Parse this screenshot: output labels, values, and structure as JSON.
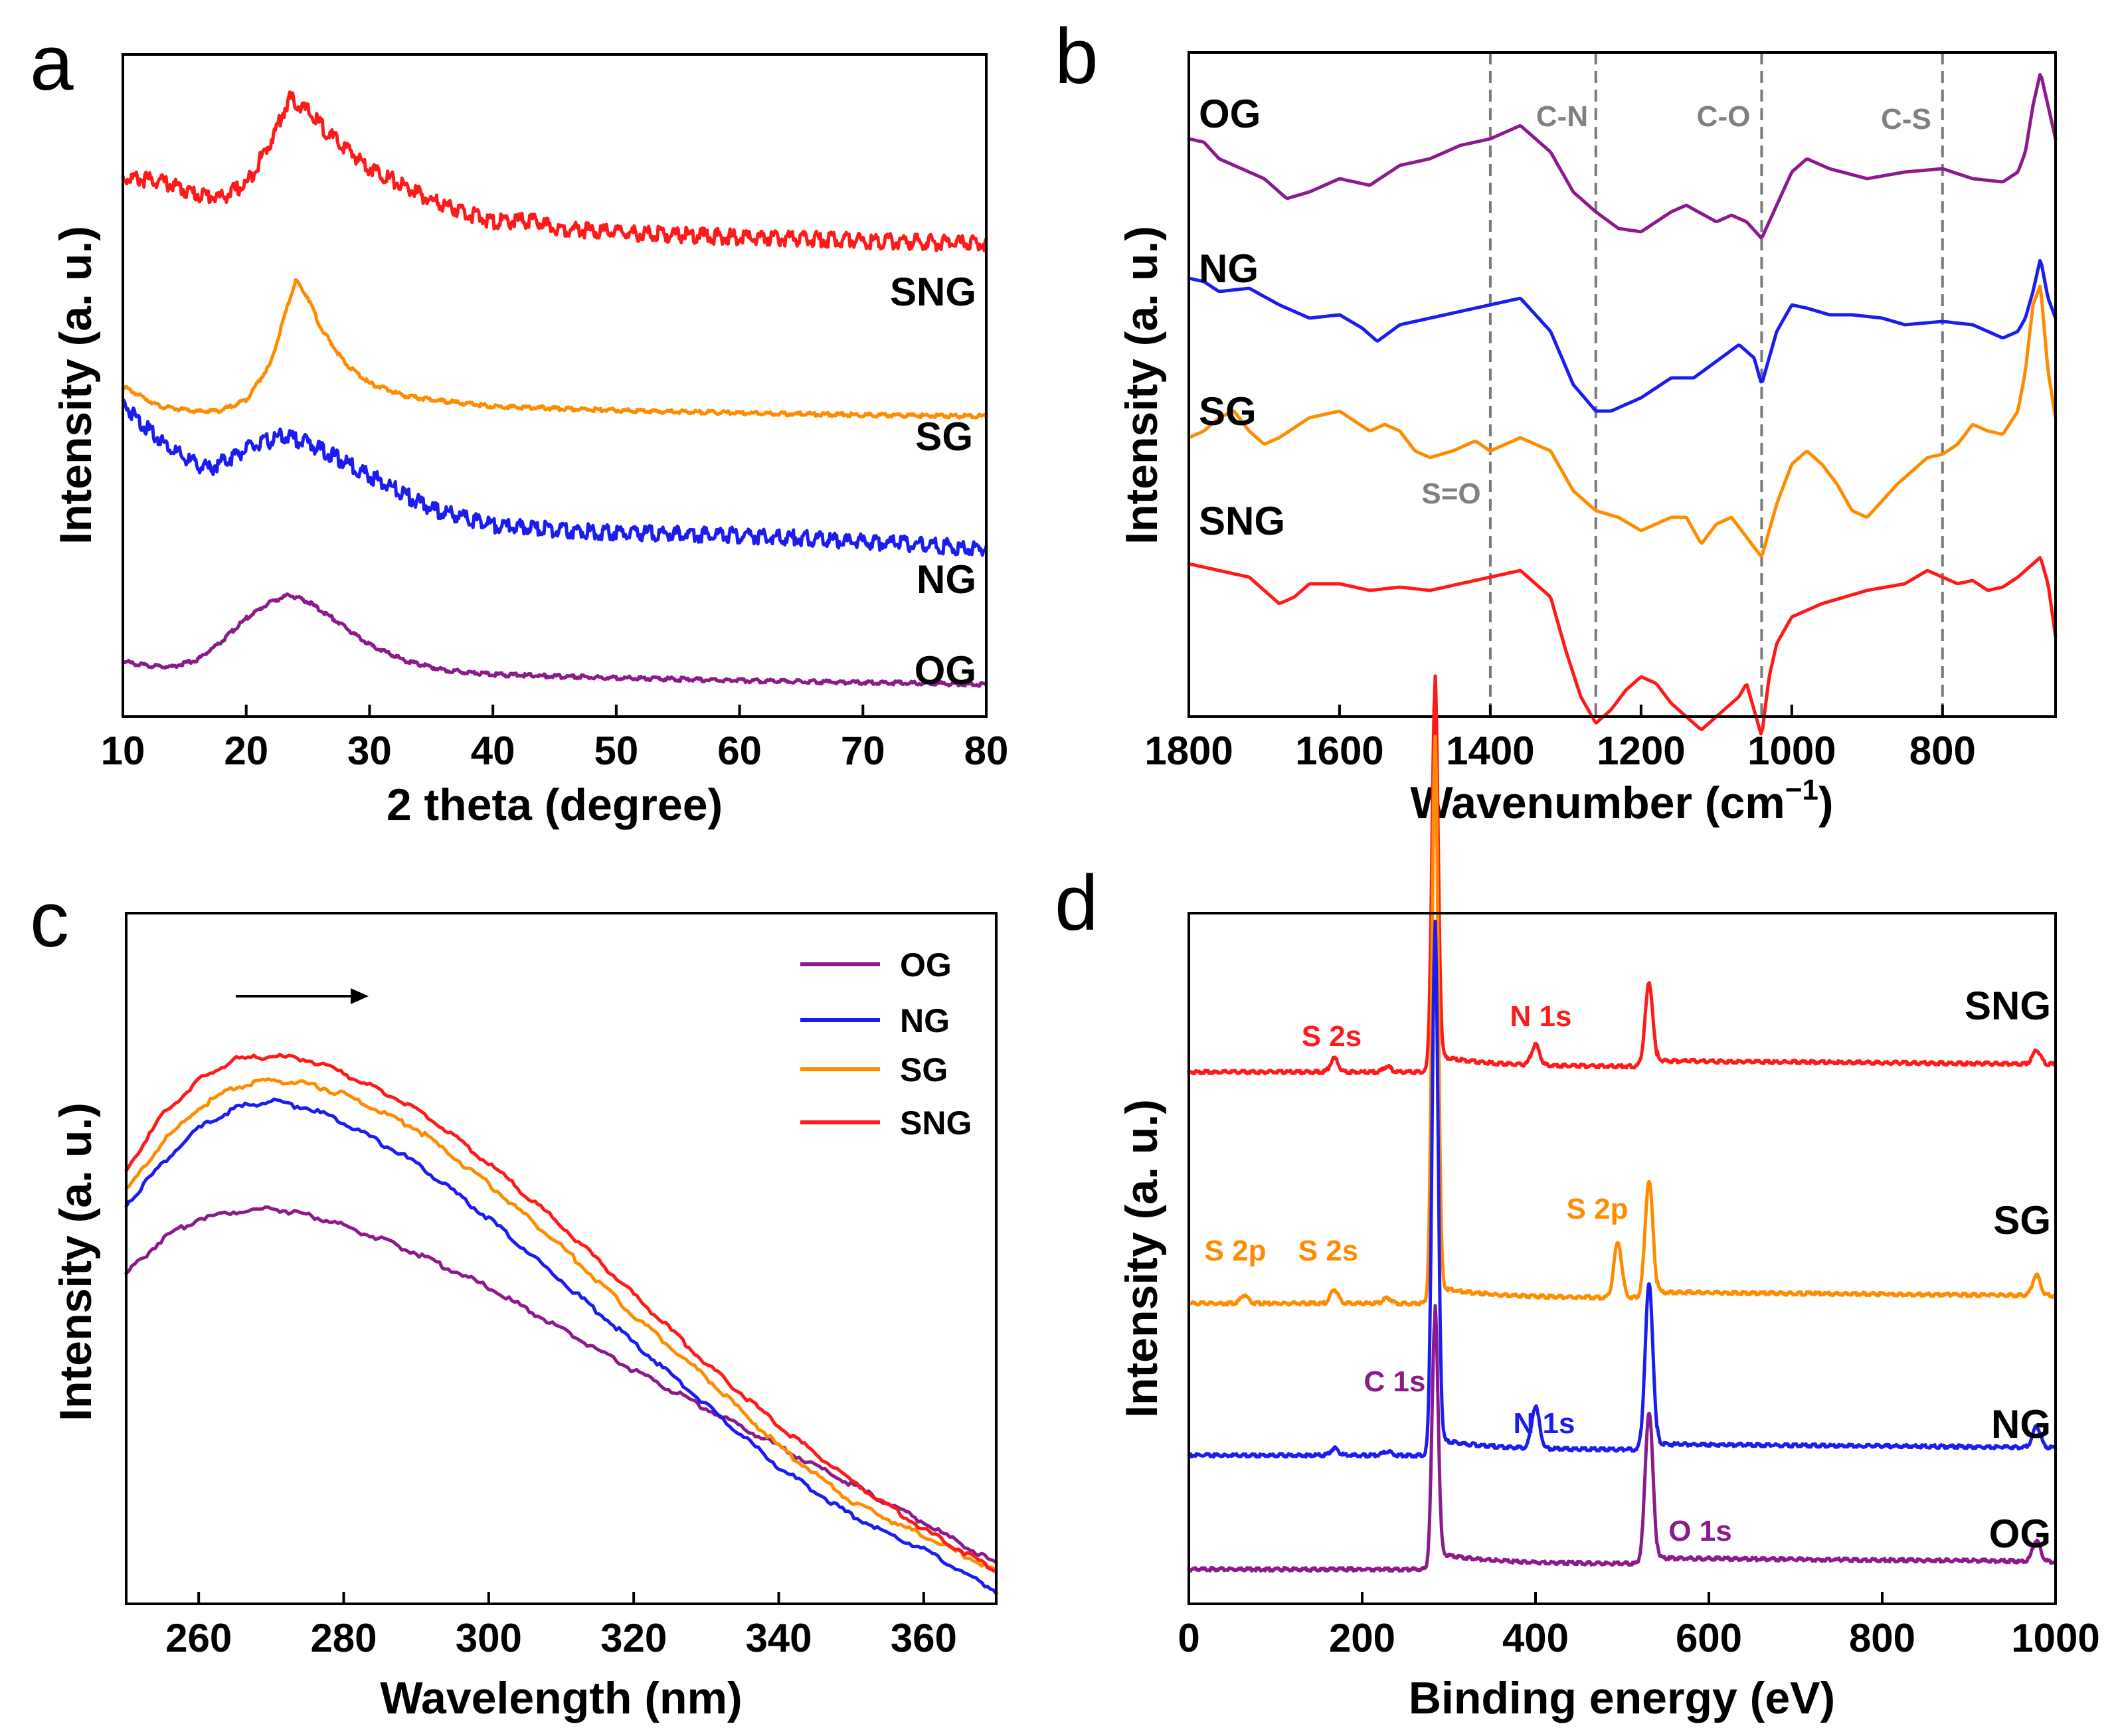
{
  "colors": {
    "OG": "#8b1a8b",
    "NG": "#1c1cf0",
    "SG": "#ff8c00",
    "SNG": "#ff1a1a",
    "annot_gray": "#808080"
  },
  "chart_data": [
    {
      "panel": "a",
      "type": "line",
      "xlabel": "2 theta (degree)",
      "ylabel": "Intensity (a. u.)",
      "xlim": [
        10,
        80
      ],
      "xticks": [
        10,
        20,
        30,
        40,
        50,
        60,
        70,
        80
      ],
      "series": [
        {
          "name": "SNG",
          "offset": 0.72,
          "x": [
            10,
            13,
            16,
            18,
            20,
            22,
            23.5,
            25,
            27,
            30,
            35,
            40,
            43,
            45,
            50,
            60,
            70,
            80
          ],
          "y": [
            0.1,
            0.095,
            0.075,
            0.07,
            0.09,
            0.155,
            0.22,
            0.2,
            0.16,
            0.115,
            0.065,
            0.033,
            0.035,
            0.024,
            0.017,
            0.01,
            0.005,
            0.0
          ]
        },
        {
          "name": "SG",
          "offset": 0.46,
          "x": [
            10,
            13,
            16,
            18,
            20,
            22,
            23,
            24,
            25,
            26,
            28,
            30,
            33,
            36,
            40,
            50,
            60,
            70,
            80
          ],
          "y": [
            0.04,
            0.01,
            0.002,
            0.004,
            0.02,
            0.075,
            0.14,
            0.2,
            0.175,
            0.13,
            0.075,
            0.045,
            0.025,
            0.018,
            0.01,
            0.004,
            0.0,
            -0.003,
            -0.005
          ]
        },
        {
          "name": "NG",
          "offset": 0.26,
          "x": [
            10,
            12,
            15,
            17,
            20,
            23,
            25,
            27,
            30,
            35,
            40,
            45,
            50,
            55,
            60,
            65,
            70,
            75,
            80
          ],
          "y": [
            0.22,
            0.18,
            0.135,
            0.12,
            0.15,
            0.17,
            0.16,
            0.14,
            0.11,
            0.06,
            0.035,
            0.028,
            0.024,
            0.022,
            0.02,
            0.016,
            0.01,
            0.005,
            0.0
          ]
        },
        {
          "name": "OG",
          "offset": 0.05,
          "x": [
            10,
            12,
            14,
            16,
            18,
            20,
            22,
            23.5,
            25,
            27,
            30,
            33,
            36,
            40,
            50,
            60,
            70,
            80
          ],
          "y": [
            0.035,
            0.028,
            0.027,
            0.037,
            0.065,
            0.1,
            0.125,
            0.135,
            0.125,
            0.1,
            0.06,
            0.035,
            0.022,
            0.015,
            0.01,
            0.006,
            0.003,
            0.0
          ]
        }
      ],
      "series_labels": [
        "SNG",
        "SG",
        "NG",
        "OG"
      ]
    },
    {
      "panel": "b",
      "type": "line",
      "xlabel": "Wavenumber (cm",
      "xlabel_sup": "−1",
      "xlabel_end": ")",
      "ylabel": "Intensity (a. u.)",
      "xlim": [
        1800,
        650
      ],
      "xticks": [
        1800,
        1600,
        1400,
        1200,
        1000,
        800
      ],
      "vlines": [
        1400,
        1260,
        1040,
        800
      ],
      "annotations": [
        "C-N",
        "C-O",
        "C-S",
        "S=O"
      ],
      "series": [
        {
          "name": "OG",
          "offset": 0.82,
          "x": [
            1800,
            1780,
            1760,
            1700,
            1670,
            1640,
            1600,
            1560,
            1520,
            1480,
            1440,
            1400,
            1360,
            1320,
            1290,
            1260,
            1230,
            1200,
            1160,
            1140,
            1100,
            1080,
            1060,
            1040,
            1020,
            1000,
            980,
            950,
            900,
            850,
            800,
            760,
            720,
            700,
            690,
            680,
            670,
            660,
            650
          ],
          "y": [
            0.05,
            0.045,
            0.02,
            -0.01,
            -0.04,
            -0.03,
            -0.01,
            -0.02,
            0.01,
            0.02,
            0.04,
            0.05,
            0.07,
            0.03,
            -0.03,
            -0.06,
            -0.085,
            -0.09,
            -0.06,
            -0.05,
            -0.075,
            -0.065,
            -0.075,
            -0.1,
            -0.05,
            0.0,
            0.02,
            0.005,
            -0.01,
            0.0,
            0.005,
            -0.01,
            -0.015,
            0.0,
            0.03,
            0.1,
            0.15,
            0.1,
            0.05
          ]
        },
        {
          "name": "NG",
          "offset": 0.6,
          "x": [
            1800,
            1780,
            1760,
            1720,
            1680,
            1640,
            1600,
            1570,
            1550,
            1520,
            1480,
            1440,
            1400,
            1360,
            1320,
            1290,
            1260,
            1240,
            1200,
            1160,
            1130,
            1100,
            1070,
            1050,
            1040,
            1020,
            1000,
            980,
            950,
            920,
            880,
            850,
            800,
            760,
            720,
            700,
            690,
            680,
            670,
            660,
            650
          ],
          "y": [
            0.06,
            0.055,
            0.04,
            0.045,
            0.02,
            0.0,
            0.005,
            -0.015,
            -0.035,
            -0.01,
            0.0,
            0.01,
            0.02,
            0.03,
            -0.02,
            -0.1,
            -0.14,
            -0.14,
            -0.12,
            -0.09,
            -0.09,
            -0.065,
            -0.04,
            -0.06,
            -0.1,
            -0.02,
            0.02,
            0.015,
            0.005,
            0.005,
            0.0,
            -0.01,
            -0.005,
            -0.01,
            -0.03,
            -0.02,
            0.0,
            0.04,
            0.09,
            0.03,
            0.0
          ]
        },
        {
          "name": "SG",
          "offset": 0.4,
          "x": [
            1800,
            1780,
            1760,
            1740,
            1720,
            1700,
            1680,
            1640,
            1600,
            1580,
            1560,
            1540,
            1520,
            1500,
            1480,
            1450,
            1420,
            1400,
            1360,
            1320,
            1290,
            1260,
            1230,
            1200,
            1160,
            1140,
            1120,
            1100,
            1080,
            1060,
            1040,
            1020,
            1000,
            980,
            960,
            940,
            920,
            900,
            860,
            820,
            800,
            780,
            760,
            740,
            720,
            700,
            690,
            680,
            670,
            660,
            650
          ],
          "y": [
            0.02,
            0.03,
            0.05,
            0.06,
            0.03,
            0.01,
            0.02,
            0.05,
            0.06,
            0.045,
            0.03,
            0.04,
            0.03,
            0.0,
            -0.01,
            0.0,
            0.015,
            0.0,
            0.02,
            0.0,
            -0.06,
            -0.09,
            -0.1,
            -0.12,
            -0.1,
            -0.1,
            -0.14,
            -0.11,
            -0.1,
            -0.13,
            -0.16,
            -0.08,
            -0.02,
            0.0,
            -0.02,
            -0.05,
            -0.09,
            -0.1,
            -0.05,
            -0.01,
            -0.005,
            0.01,
            0.04,
            0.03,
            0.025,
            0.06,
            0.12,
            0.22,
            0.25,
            0.12,
            0.05
          ]
        },
        {
          "name": "SNG",
          "offset": 0.2,
          "x": [
            1800,
            1760,
            1720,
            1700,
            1680,
            1660,
            1640,
            1600,
            1560,
            1520,
            1480,
            1440,
            1400,
            1360,
            1320,
            1300,
            1280,
            1260,
            1240,
            1220,
            1200,
            1180,
            1160,
            1140,
            1120,
            1100,
            1080,
            1070,
            1060,
            1050,
            1040,
            1030,
            1020,
            1000,
            960,
            900,
            850,
            820,
            800,
            780,
            760,
            740,
            720,
            700,
            690,
            680,
            670,
            660,
            650
          ],
          "y": [
            0.03,
            0.02,
            0.01,
            -0.01,
            -0.03,
            -0.02,
            0.0,
            0.0,
            -0.01,
            -0.005,
            -0.01,
            0.0,
            0.01,
            0.02,
            -0.02,
            -0.1,
            -0.17,
            -0.21,
            -0.19,
            -0.16,
            -0.14,
            -0.15,
            -0.18,
            -0.2,
            -0.22,
            -0.2,
            -0.18,
            -0.17,
            -0.15,
            -0.19,
            -0.23,
            -0.14,
            -0.09,
            -0.05,
            -0.03,
            -0.01,
            0.0,
            0.02,
            0.01,
            0.0,
            0.005,
            -0.01,
            -0.005,
            0.01,
            0.02,
            0.03,
            0.04,
            0.0,
            -0.08
          ]
        }
      ]
    },
    {
      "panel": "c",
      "type": "line",
      "xlabel": "Wavelength (nm)",
      "ylabel": "Intensity (a. u.)",
      "xlim": [
        250,
        370
      ],
      "ylim": [
        0,
        1
      ],
      "xticks": [
        260,
        280,
        300,
        320,
        340,
        360
      ],
      "legend": [
        "OG",
        "NG",
        "SG",
        "SNG"
      ],
      "series": [
        {
          "name": "OG",
          "x": [
            250,
            255,
            260,
            265,
            270,
            275,
            280,
            290,
            300,
            310,
            320,
            330,
            340,
            350,
            360,
            370
          ],
          "y": [
            0.48,
            0.53,
            0.56,
            0.57,
            0.575,
            0.565,
            0.55,
            0.51,
            0.46,
            0.4,
            0.34,
            0.285,
            0.23,
            0.175,
            0.12,
            0.06
          ]
        },
        {
          "name": "NG",
          "x": [
            250,
            255,
            260,
            265,
            270,
            275,
            280,
            290,
            300,
            310,
            320,
            330,
            340,
            350,
            360,
            370
          ],
          "y": [
            0.58,
            0.64,
            0.69,
            0.72,
            0.73,
            0.72,
            0.7,
            0.64,
            0.56,
            0.47,
            0.38,
            0.29,
            0.2,
            0.13,
            0.08,
            0.02
          ]
        },
        {
          "name": "SG",
          "x": [
            250,
            255,
            260,
            265,
            270,
            275,
            280,
            290,
            300,
            310,
            320,
            330,
            340,
            350,
            360,
            370
          ],
          "y": [
            0.6,
            0.67,
            0.72,
            0.75,
            0.76,
            0.755,
            0.74,
            0.69,
            0.61,
            0.52,
            0.42,
            0.33,
            0.23,
            0.15,
            0.1,
            0.05
          ]
        },
        {
          "name": "SNG",
          "x": [
            250,
            255,
            260,
            265,
            270,
            275,
            280,
            290,
            300,
            310,
            320,
            330,
            340,
            350,
            360,
            370
          ],
          "y": [
            0.63,
            0.71,
            0.76,
            0.79,
            0.795,
            0.79,
            0.77,
            0.72,
            0.64,
            0.55,
            0.45,
            0.35,
            0.26,
            0.18,
            0.11,
            0.05
          ]
        }
      ]
    },
    {
      "panel": "d",
      "type": "line",
      "xlabel": "Binding energy (eV)",
      "ylabel": "Intensity (a. u.)",
      "xlim": [
        0,
        1000
      ],
      "xticks": [
        0,
        200,
        400,
        600,
        800,
        1000
      ],
      "series": [
        {
          "name": "SNG",
          "offset": 0.77,
          "peaks": [
            [
              168,
              0.02
            ],
            [
              229,
              0.008
            ],
            [
              284,
              0.55
            ],
            [
              400,
              0.03
            ],
            [
              531,
              0.12
            ],
            [
              978,
              0.02
            ]
          ]
        },
        {
          "name": "SG",
          "offset": 0.435,
          "peaks": [
            [
              64,
              0.012
            ],
            [
              168,
              0.02
            ],
            [
              229,
              0.008
            ],
            [
              284,
              0.8
            ],
            [
              495,
              0.08
            ],
            [
              531,
              0.17
            ],
            [
              978,
              0.03
            ]
          ]
        },
        {
          "name": "NG",
          "offset": 0.215,
          "peaks": [
            [
              168,
              0.01
            ],
            [
              229,
              0.006
            ],
            [
              284,
              0.75
            ],
            [
              400,
              0.06
            ],
            [
              531,
              0.24
            ],
            [
              978,
              0.03
            ]
          ]
        },
        {
          "name": "OG",
          "offset": 0.05,
          "peaks": [
            [
              284,
              0.36
            ],
            [
              531,
              0.22
            ],
            [
              978,
              0.03
            ]
          ]
        }
      ],
      "peak_labels": [
        {
          "text": "S 2s",
          "series": "SNG"
        },
        {
          "text": "N 1s",
          "series": "SNG"
        },
        {
          "text": "S 2p",
          "series": "SG"
        },
        {
          "text": "S 2s",
          "series": "SG"
        },
        {
          "text": "S 2p",
          "series": "SG"
        },
        {
          "text": "C 1s",
          "series": "OG"
        },
        {
          "text": "N 1s",
          "series": "NG"
        },
        {
          "text": "O 1s",
          "series": "OG"
        }
      ],
      "series_labels": [
        "SNG",
        "SG",
        "NG",
        "OG"
      ]
    }
  ],
  "panel_labels": {
    "a": "a",
    "b": "b",
    "c": "c",
    "d": "d"
  }
}
